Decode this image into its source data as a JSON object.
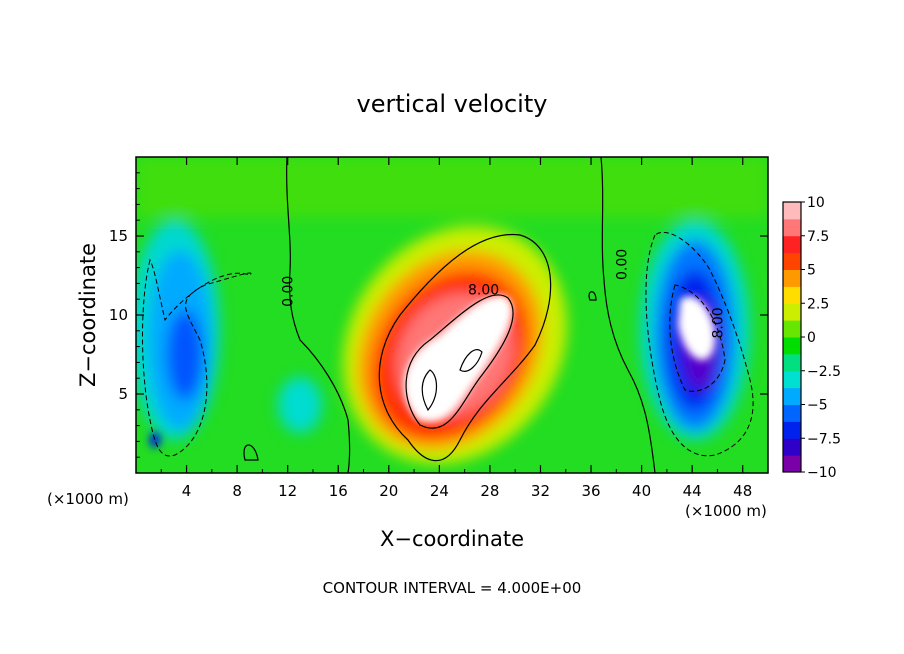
{
  "chart_data": {
    "type": "heatmap",
    "title": "vertical velocity",
    "xlabel": "X−coordinate",
    "ylabel": "Z−coordinate",
    "x_unit_left": "(×1000 m)",
    "x_unit_right": "(×1000 m)",
    "footer": "CONTOUR INTERVAL = 4.000E+00",
    "xlim": [
      0,
      50
    ],
    "ylim": [
      0,
      20
    ],
    "x_ticks": [
      "4",
      "8",
      "12",
      "16",
      "20",
      "24",
      "28",
      "32",
      "36",
      "40",
      "44",
      "48"
    ],
    "y_ticks": [
      "5",
      "10",
      "15"
    ],
    "colorbar": {
      "ticks": [
        "10",
        "7.5",
        "5",
        "2.5",
        "0",
        "−2.5",
        "−5",
        "−7.5",
        "−10"
      ],
      "range": [
        -10,
        10
      ],
      "colors": [
        "#7a00a8",
        "#2f00c8",
        "#0022ee",
        "#0066ff",
        "#00aaff",
        "#00e0d0",
        "#00e080",
        "#00dd00",
        "#66e600",
        "#ccee00",
        "#ffdd00",
        "#ff9900",
        "#ff4400",
        "#ff2222",
        "#ff7777",
        "#ffbbbb"
      ]
    },
    "contour_labels": [
      {
        "text": "0.00",
        "x": 12.4,
        "y": 11.5,
        "rotate": -90
      },
      {
        "text": "0.00",
        "x": 38.8,
        "y": 13.2,
        "rotate": -90
      },
      {
        "text": "8.00",
        "x": 27.5,
        "y": 11.3,
        "rotate": 0
      },
      {
        "text": "8.00",
        "x": 46.4,
        "y": 9.5,
        "rotate": -90
      }
    ],
    "features": [
      {
        "type": "updraft",
        "x": 26,
        "z": 9,
        "peak": 12
      },
      {
        "type": "downdraft",
        "x": 45,
        "z": 9,
        "peak": -10
      },
      {
        "type": "downdraft",
        "x": 4,
        "z": 8,
        "peak": -7
      }
    ]
  }
}
